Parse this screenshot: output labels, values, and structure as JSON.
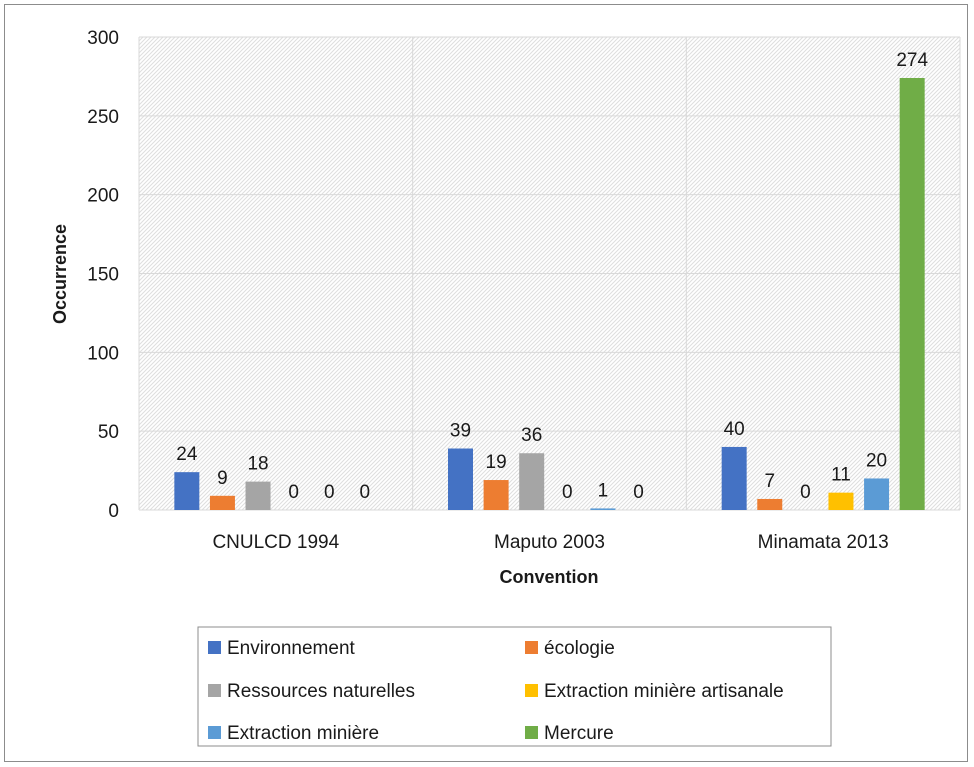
{
  "chart_data": {
    "type": "bar",
    "title": "",
    "xlabel": "Convention",
    "ylabel": "Occurrence",
    "ylim": [
      0,
      300
    ],
    "yticks": [
      0,
      50,
      100,
      150,
      200,
      250,
      300
    ],
    "grid": true,
    "legend_position": "bottom",
    "categories": [
      "CNULCD 1994",
      "Maputo 2003",
      "Minamata 2013"
    ],
    "series": [
      {
        "name": "Environnement",
        "color": "#4472c4",
        "values": [
          24,
          39,
          40
        ],
        "labels": [
          "24",
          "39",
          "40"
        ]
      },
      {
        "name": "écologie",
        "color": "#ed7d31",
        "values": [
          9,
          19,
          7
        ],
        "labels": [
          "9",
          "19",
          "7"
        ]
      },
      {
        "name": "Ressources naturelles",
        "color": "#a5a5a5",
        "values": [
          18,
          36,
          0
        ],
        "labels": [
          "18",
          "36",
          "0"
        ]
      },
      {
        "name": "Extraction minière artisanale",
        "color": "#ffc000",
        "values": [
          0,
          0,
          11
        ],
        "labels": [
          "0",
          "0",
          "11"
        ]
      },
      {
        "name": "Extraction minière",
        "color": "#5b9bd5",
        "values": [
          0,
          1,
          20
        ],
        "labels": [
          "0",
          "1",
          "20"
        ]
      },
      {
        "name": "Mercure",
        "color": "#70ad47",
        "values": [
          0,
          0,
          274
        ],
        "labels": [
          "0",
          "0",
          "274"
        ]
      }
    ]
  }
}
